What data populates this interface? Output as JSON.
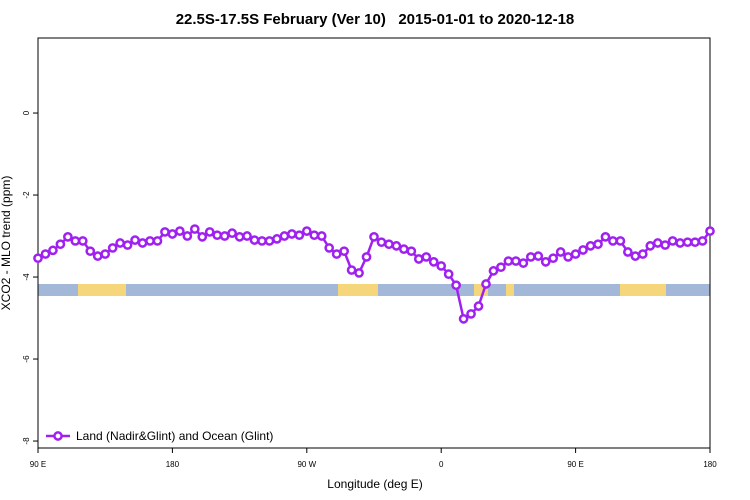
{
  "chart_data": {
    "type": "line",
    "title": "22.5S-17.5S February (Ver 10)   2015-01-01 to 2020-12-18",
    "xlabel": "Longitude (deg E)",
    "ylabel": "XCO2 - MLO trend (ppm)",
    "xlim": [
      90,
      540
    ],
    "ylim": [
      -8.17,
      1.83
    ],
    "xticks": [
      {
        "value": 90,
        "label": "90 E"
      },
      180,
      {
        "value": 270,
        "label": "90 W"
      },
      {
        "value": 360,
        "label": "0"
      },
      {
        "value": 450,
        "label": "90 E"
      },
      {
        "value": 540,
        "label": "180"
      }
    ],
    "yticks": [
      0,
      -2,
      -4,
      -6,
      -8
    ],
    "legend": "bottom-left",
    "x": [
      90,
      95,
      100,
      105,
      110,
      115,
      120,
      125,
      130,
      135,
      140,
      145,
      150,
      155,
      160,
      165,
      170,
      175,
      180,
      185,
      190,
      195,
      200,
      205,
      210,
      215,
      220,
      225,
      230,
      235,
      240,
      245,
      250,
      255,
      260,
      265,
      270,
      275,
      280,
      285,
      290,
      295,
      300,
      305,
      310,
      315,
      320,
      325,
      330,
      335,
      340,
      345,
      350,
      355,
      360,
      365,
      370,
      375,
      380,
      385,
      390,
      395,
      400,
      405,
      410,
      415,
      420,
      425,
      430,
      435,
      440,
      445,
      450,
      455,
      460,
      465,
      470,
      475,
      480,
      485,
      490,
      495,
      500,
      505,
      510,
      515,
      520,
      525,
      530,
      535,
      540
    ],
    "series": [
      {
        "name": "Land (Nadir&Glint) and Ocean (Glint)",
        "color": "#a020f0",
        "values": [
          -3.54,
          -3.44,
          -3.35,
          -3.2,
          -3.02,
          -3.12,
          -3.12,
          -3.37,
          -3.49,
          -3.44,
          -3.29,
          -3.17,
          -3.22,
          -3.1,
          -3.17,
          -3.12,
          -3.12,
          -2.9,
          -2.95,
          -2.88,
          -3.0,
          -2.83,
          -3.02,
          -2.9,
          -2.98,
          -3.0,
          -2.93,
          -3.02,
          -3.0,
          -3.1,
          -3.12,
          -3.12,
          -3.07,
          -3.0,
          -2.95,
          -2.98,
          -2.88,
          -2.98,
          -3.0,
          -3.29,
          -3.44,
          -3.37,
          -3.83,
          -3.9,
          -3.51,
          -3.02,
          -3.15,
          -3.2,
          -3.24,
          -3.32,
          -3.37,
          -3.56,
          -3.51,
          -3.63,
          -3.73,
          -3.93,
          -4.2,
          -5.02,
          -4.9,
          -4.71,
          -4.17,
          -3.85,
          -3.76,
          -3.61,
          -3.61,
          -3.66,
          -3.51,
          -3.49,
          -3.63,
          -3.54,
          -3.39,
          -3.51,
          -3.44,
          -3.34,
          -3.24,
          -3.2,
          -3.02,
          -3.12,
          -3.12,
          -3.39,
          -3.49,
          -3.44,
          -3.24,
          -3.17,
          -3.22,
          -3.12,
          -3.17,
          -3.15,
          -3.15,
          -3.12,
          -2.88
        ]
      }
    ]
  }
}
